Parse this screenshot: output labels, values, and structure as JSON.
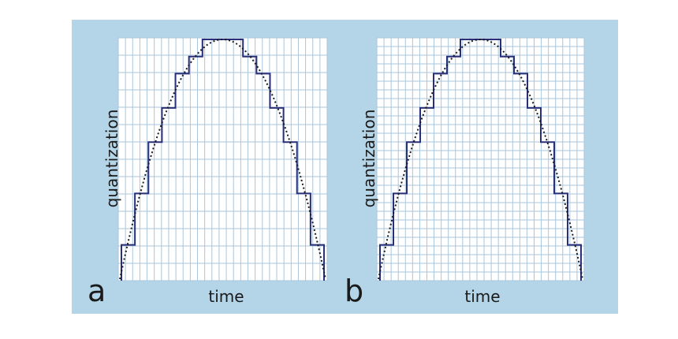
{
  "panels": [
    {
      "letter": "a",
      "ylabel": "quantization",
      "xlabel": "time",
      "grid": {
        "vertical_lines": 29,
        "horizontal_lines": 14
      },
      "curve": "parabola",
      "steps": "coarse"
    },
    {
      "letter": "b",
      "ylabel": "quantization",
      "xlabel": "time",
      "grid": {
        "vertical_lines": 29,
        "horizontal_lines": 28
      },
      "curve": "parabola",
      "steps": "fine"
    }
  ],
  "colors": {
    "background": "#b4d5e8",
    "plot_area": "#ffffff",
    "grid": "#a9c6db",
    "staircase": "#2a2f7a",
    "curve": "#1a1a1a"
  }
}
